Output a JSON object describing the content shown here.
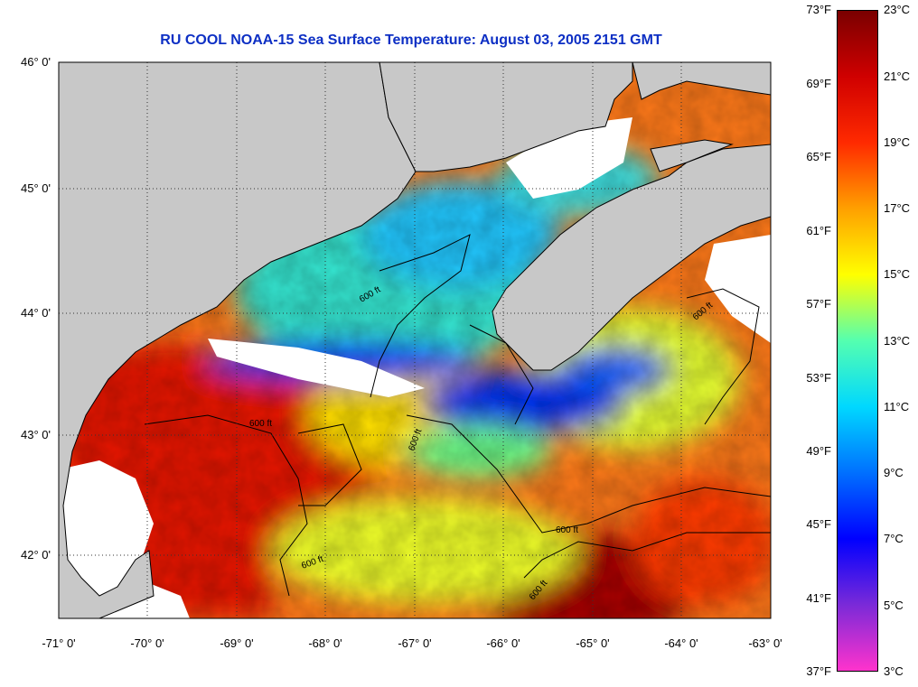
{
  "title": "RU COOL  NOAA-15  Sea Surface Temperature:  August 03, 2005 2151 GMT",
  "map": {
    "lat_labels": [
      "46° 0'",
      "45° 0'",
      "44° 0'",
      "43° 0'",
      "42° 0'"
    ],
    "lon_labels": [
      "-71° 0'",
      "-70° 0'",
      "-69° 0'",
      "-68° 0'",
      "-67° 0'",
      "-66° 0'",
      "-65° 0'",
      "-64° 0'",
      "-63° 0'"
    ],
    "lat_range": [
      41.5,
      46.05
    ],
    "lon_range": [
      -71.0,
      -63.0
    ],
    "contour_label": "600 ft",
    "colors": {
      "land": "#c8c8c8",
      "cloud": "#ffffff",
      "coast": "#000000"
    }
  },
  "colorbar": {
    "fahrenheit_labels": [
      "73°F",
      "69°F",
      "65°F",
      "61°F",
      "57°F",
      "53°F",
      "49°F",
      "45°F",
      "41°F",
      "37°F"
    ],
    "celsius_labels": [
      "23°C",
      "21°C",
      "19°C",
      "17°C",
      "15°C",
      "13°C",
      "11°C",
      "9°C",
      "7°C",
      "5°C",
      "3°C"
    ],
    "stops": [
      "#ff33cc",
      "#7a2ad8",
      "#0000ff",
      "#0070ff",
      "#00d8ff",
      "#54ffb0",
      "#ffff00",
      "#ffa000",
      "#ff2a00",
      "#d00000",
      "#7a0000"
    ]
  }
}
